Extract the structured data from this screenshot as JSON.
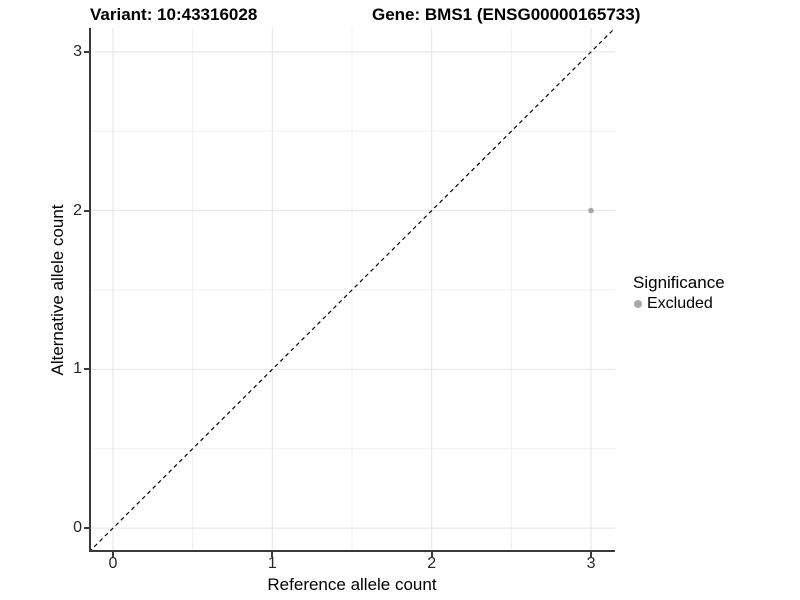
{
  "chart_data": {
    "type": "scatter",
    "titles": {
      "left": "Variant: 10:43316028",
      "right": "Gene: BMS1 (ENSG00000165733)"
    },
    "xlabel": "Reference allele count",
    "ylabel": "Alternative allele count",
    "xlim": [
      -0.15,
      3.15
    ],
    "ylim": [
      -0.15,
      3.15
    ],
    "xticks": [
      0,
      1,
      2,
      3
    ],
    "yticks": [
      0,
      1,
      2,
      3
    ],
    "x_minor": [
      0.5,
      1.5,
      2.5
    ],
    "y_minor": [
      0.5,
      1.5,
      2.5
    ],
    "grid": "major+minor",
    "reference_line": {
      "type": "identity",
      "style": "dashed",
      "color": "#000000"
    },
    "series": [
      {
        "name": "Excluded",
        "color": "#a8a8a8",
        "marker": "circle",
        "points": [
          [
            3,
            2
          ]
        ]
      }
    ],
    "legend": {
      "title": "Significance",
      "position": "right",
      "items": [
        {
          "label": "Excluded",
          "color": "#a8a8a8"
        }
      ]
    }
  },
  "colors": {
    "background": "#ffffff",
    "grid_major": "#e5e5e5",
    "grid_minor": "#f1f1f1",
    "axis_line": "#3a3a3a",
    "tick_text": "#262626",
    "title_text": "#000000"
  }
}
